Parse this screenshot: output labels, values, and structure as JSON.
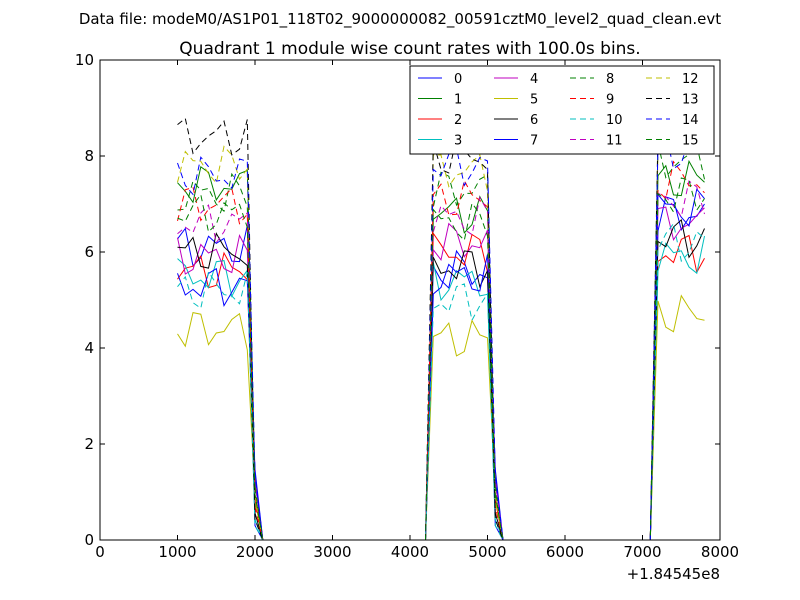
{
  "chart_data": {
    "type": "line",
    "suptitle": "Data file: modeM0/AS1P01_118T02_9000000082_00591cztM0_level2_quad_clean.evt",
    "title": "Quadrant 1 module wise count rates with 100.0s bins.",
    "xlabel": "",
    "ylabel": "",
    "x_offset_label": "+1.84545e8",
    "xlim": [
      0,
      8000
    ],
    "ylim": [
      0,
      10
    ],
    "xticks": [
      0,
      1000,
      2000,
      3000,
      4000,
      5000,
      6000,
      7000,
      8000
    ],
    "yticks": [
      0,
      2,
      4,
      6,
      8,
      10
    ],
    "grid": false,
    "legend_position": "top-right",
    "legend_columns": 4,
    "gap_x": [
      2200,
      4100,
      5300,
      7000
    ],
    "segments": [
      {
        "x_start": 1000,
        "x_end": 1900,
        "drop_to": 2100,
        "levels": "seg1"
      },
      {
        "x_start": 4300,
        "x_end": 5000,
        "rise_from": 4200,
        "drop_to": 5200,
        "levels": "seg2"
      },
      {
        "x_start": 7200,
        "x_end": 7800,
        "rise_from": 7100,
        "levels": "seg3"
      }
    ],
    "series": [
      {
        "name": "0",
        "color": "#0000ff",
        "dash": "solid",
        "seg1": 6.1,
        "seg2": 5.6,
        "seg3": 6.8
      },
      {
        "name": "1",
        "color": "#008000",
        "dash": "solid",
        "seg1": 7.4,
        "seg2": 6.8,
        "seg3": 7.5
      },
      {
        "name": "2",
        "color": "#ff0000",
        "dash": "solid",
        "seg1": 5.6,
        "seg2": 6.0,
        "seg3": 6.0
      },
      {
        "name": "3",
        "color": "#00bfbf",
        "dash": "solid",
        "seg1": 5.5,
        "seg2": 5.4,
        "seg3": 5.9
      },
      {
        "name": "4",
        "color": "#bf00bf",
        "dash": "solid",
        "seg1": 5.9,
        "seg2": 6.2,
        "seg3": 6.6
      },
      {
        "name": "5",
        "color": "#bfbf00",
        "dash": "solid",
        "seg1": 4.4,
        "seg2": 4.2,
        "seg3": 4.7
      },
      {
        "name": "6",
        "color": "#000000",
        "dash": "solid",
        "seg1": 6.0,
        "seg2": 5.7,
        "seg3": 6.3
      },
      {
        "name": "7",
        "color": "#0000ff",
        "dash": "solid",
        "seg1": 5.3,
        "seg2": 5.5,
        "seg3": 6.9
      },
      {
        "name": "8",
        "color": "#008000",
        "dash": "dashed",
        "seg1": 7.2,
        "seg2": 7.3,
        "seg3": 7.9
      },
      {
        "name": "9",
        "color": "#ff0000",
        "dash": "dashed",
        "seg1": 7.0,
        "seg2": 7.1,
        "seg3": 7.5
      },
      {
        "name": "10",
        "color": "#00bfbf",
        "dash": "dashed",
        "seg1": 5.2,
        "seg2": 5.0,
        "seg3": 6.2
      },
      {
        "name": "11",
        "color": "#bf00bf",
        "dash": "dashed",
        "seg1": 6.6,
        "seg2": 6.7,
        "seg3": 7.1
      },
      {
        "name": "12",
        "color": "#bfbf00",
        "dash": "dashed",
        "seg1": 7.8,
        "seg2": 7.7,
        "seg3": 8.5
      },
      {
        "name": "13",
        "color": "#000000",
        "dash": "dashed",
        "seg1": 8.4,
        "seg2": 8.0,
        "seg3": 8.9
      },
      {
        "name": "14",
        "color": "#0000ff",
        "dash": "dashed",
        "seg1": 7.6,
        "seg2": 7.8,
        "seg3": 8.1
      },
      {
        "name": "15",
        "color": "#008000",
        "dash": "dashed",
        "seg1": 6.8,
        "seg2": 6.6,
        "seg3": 7.2
      }
    ]
  }
}
